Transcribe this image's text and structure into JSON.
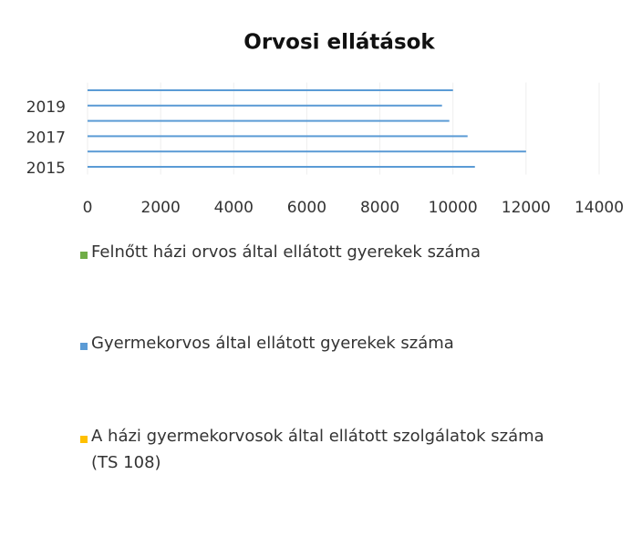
{
  "chart_data": {
    "type": "hbar",
    "title": "Orvosi ellátások",
    "categories": [
      "2015",
      null,
      "2017",
      null,
      "2019",
      null
    ],
    "series": [
      {
        "name": "Felnőtt házi orvos által ellátott gyerekek száma",
        "color": "#70ad47",
        "values": [
          0,
          0,
          0,
          0,
          0,
          0
        ]
      },
      {
        "name": "Gyermekorvos által ellátott gyerekek száma",
        "color": "#5b9bd5",
        "values": [
          10600,
          12000,
          10400,
          9900,
          9700,
          10000
        ]
      },
      {
        "name": "A házi gyermekorvosok által ellátott szolgálatok száma (TS 108)",
        "color": "#ffc000",
        "values": [
          0,
          0,
          0,
          0,
          0,
          0
        ]
      }
    ],
    "xlim": [
      0,
      14000
    ],
    "xticks": [
      0,
      2000,
      4000,
      6000,
      8000,
      10000,
      12000,
      14000
    ],
    "grid": true
  }
}
